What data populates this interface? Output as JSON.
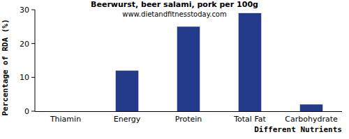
{
  "chart_data": {
    "type": "bar",
    "title": "Beerwurst, beer salami, pork per 100g",
    "subtitle": "www.dietandfitnesstoday.com",
    "x_label": "Different Nutrients",
    "y_label": "Percentage of RDA (%)",
    "categories": [
      "Thiamin",
      "Energy",
      "Protein",
      "Total Fat",
      "Carbohydrate"
    ],
    "values": [
      0,
      12,
      25,
      29,
      2
    ],
    "color": "#233a8b",
    "ylim": [
      0,
      30
    ],
    "yticks": [
      0,
      10,
      20,
      30
    ],
    "grid": false
  }
}
